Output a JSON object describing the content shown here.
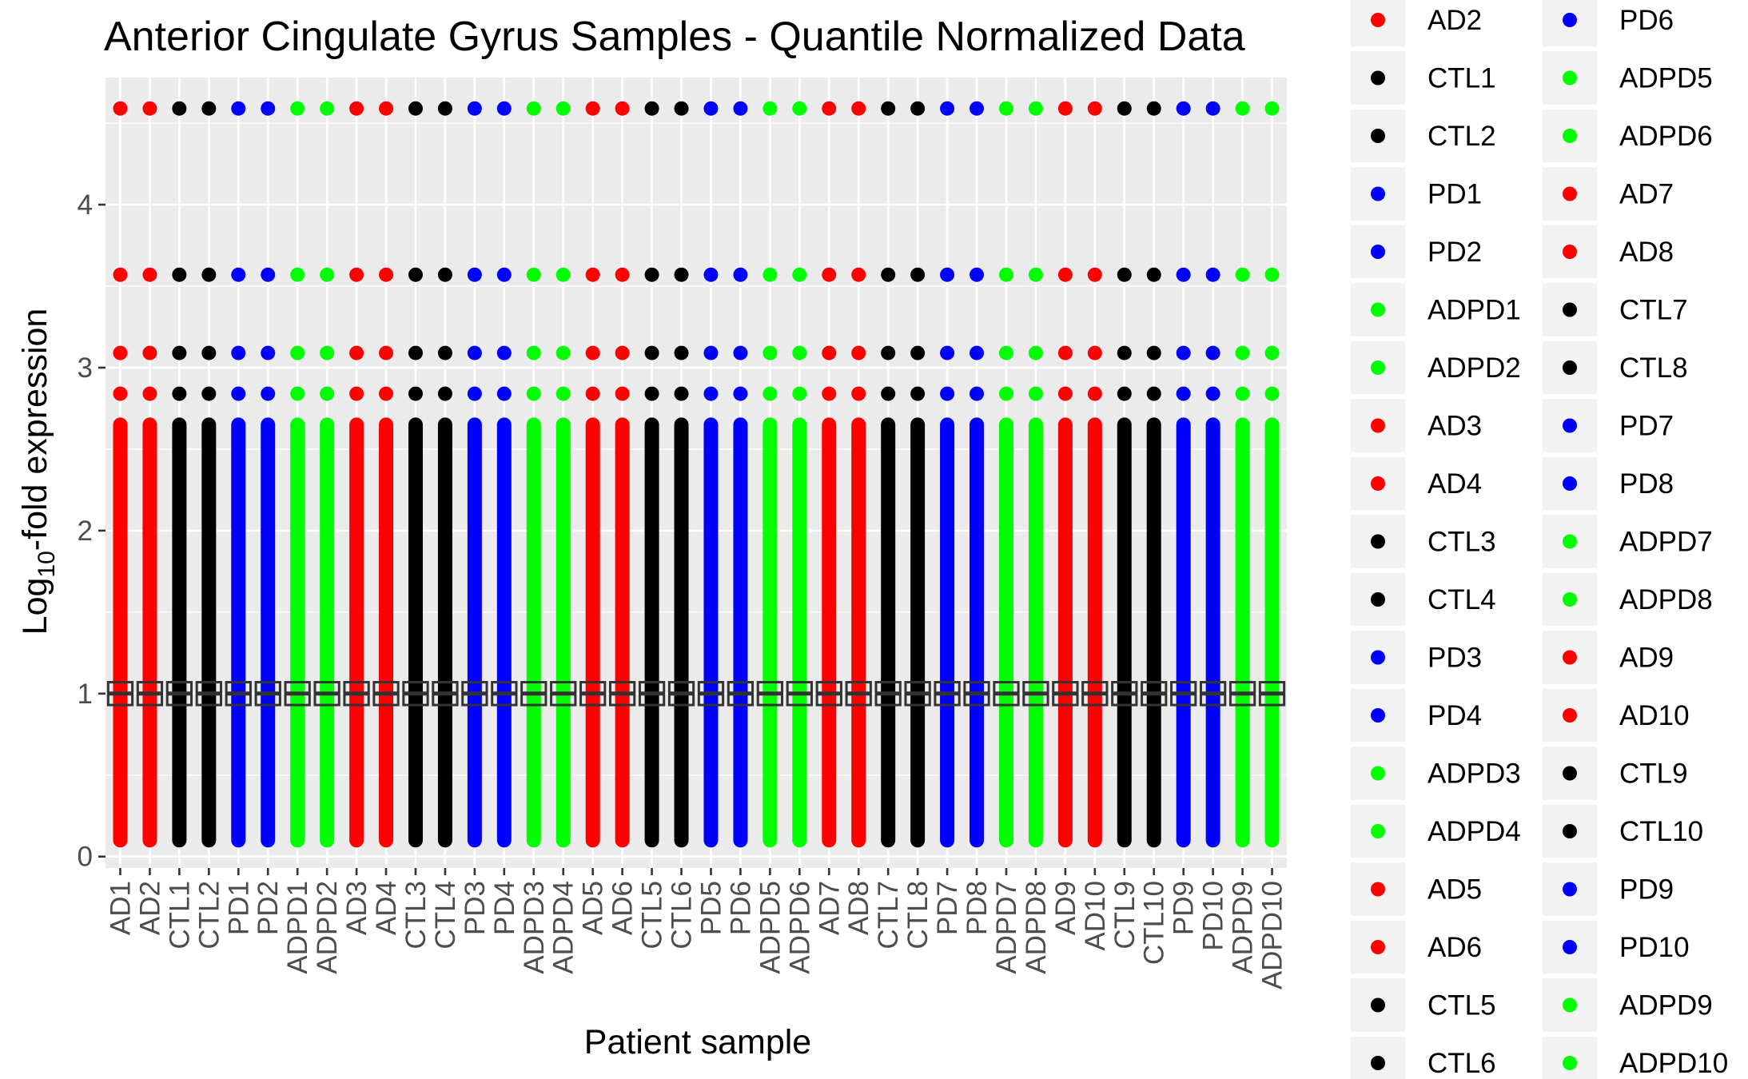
{
  "chart_data": {
    "type": "scatter",
    "title": "Anterior Cingulate Gyrus Samples - Quantile Normalized Data",
    "xlabel": "Patient sample",
    "ylabel_main": "Log",
    "ylabel_sub": "10",
    "ylabel_rest": "-fold expression",
    "ylim": [
      -0.07,
      4.78
    ],
    "yticks": [
      0,
      1,
      2,
      3,
      4
    ],
    "grid": true,
    "legend_position": "right",
    "group_colors": {
      "AD": "#ff0000",
      "CTL": "#000000",
      "PD": "#0000ff",
      "ADPD": "#00ff00"
    },
    "categories": [
      "AD1",
      "AD2",
      "CTL1",
      "CTL2",
      "PD1",
      "PD2",
      "ADPD1",
      "ADPD2",
      "AD3",
      "AD4",
      "CTL3",
      "CTL4",
      "PD3",
      "PD4",
      "ADPD3",
      "ADPD4",
      "AD5",
      "AD6",
      "CTL5",
      "CTL6",
      "PD5",
      "PD6",
      "ADPD5",
      "ADPD6",
      "AD7",
      "AD8",
      "CTL7",
      "CTL8",
      "PD7",
      "PD8",
      "ADPD7",
      "ADPD8",
      "AD9",
      "AD10",
      "CTL9",
      "CTL10",
      "PD9",
      "PD10",
      "ADPD9",
      "ADPD10"
    ],
    "continuous_range": [
      0.1,
      2.65
    ],
    "outlier_values": [
      2.84,
      3.09,
      3.57,
      4.59
    ],
    "box_median": 1.0,
    "box_q1": 0.93,
    "box_q3": 1.07,
    "legend_entries": [
      "AD2",
      "CTL1",
      "CTL2",
      "PD1",
      "PD2",
      "ADPD1",
      "ADPD2",
      "AD3",
      "AD4",
      "CTL3",
      "CTL4",
      "PD3",
      "PD4",
      "ADPD3",
      "ADPD4",
      "AD5",
      "AD6",
      "CTL5",
      "CTL6",
      "PD6",
      "ADPD5",
      "ADPD6",
      "AD7",
      "AD8",
      "CTL7",
      "CTL8",
      "PD7",
      "PD8",
      "ADPD7",
      "ADPD8",
      "AD9",
      "AD10",
      "CTL9",
      "CTL10",
      "PD9",
      "PD10",
      "ADPD9",
      "ADPD10"
    ]
  }
}
